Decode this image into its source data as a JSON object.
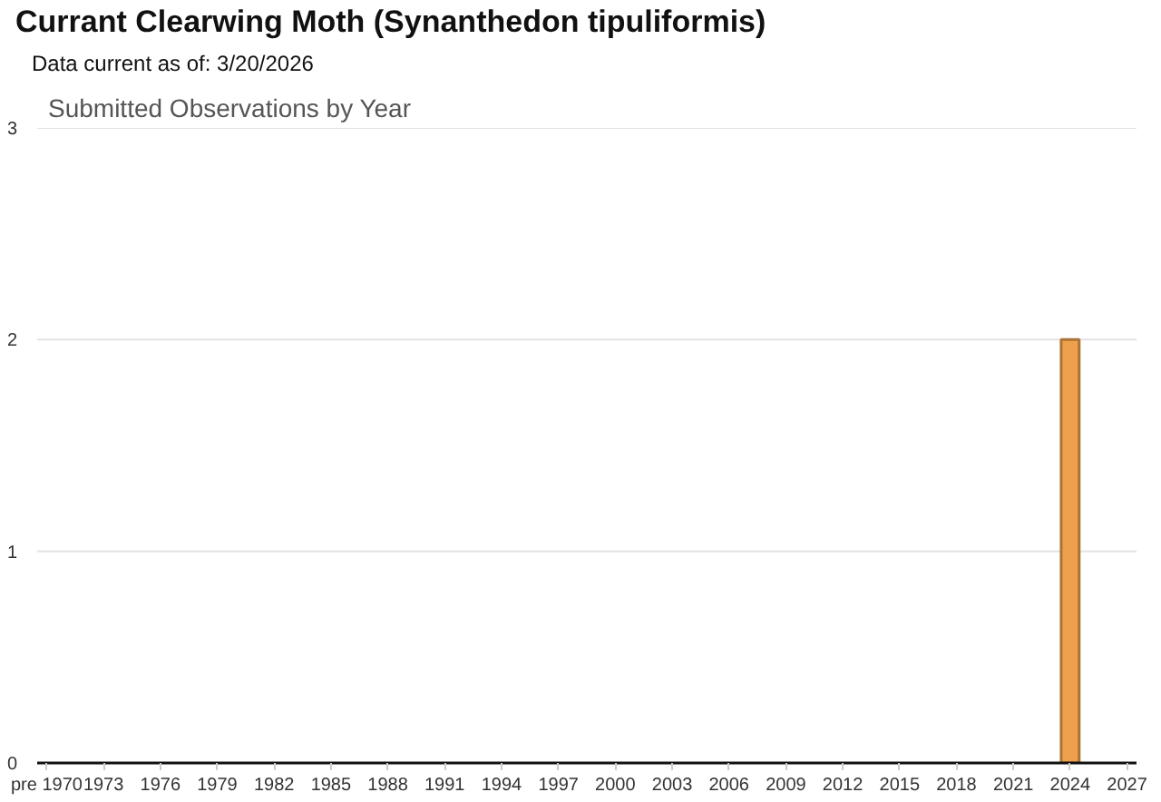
{
  "chart_data": {
    "type": "bar",
    "title": "Currant Clearwing Moth   (Synanthedon tipuliformis)",
    "subtitle": "Data current as of: 3/20/2026",
    "annotations": [
      "Submitted Observations by Year"
    ],
    "x": [
      2024
    ],
    "values": [
      2
    ],
    "color": "#eea04c",
    "xlim": [
      1969.5,
      2027.5
    ],
    "xticks": [
      {
        "value": 1970,
        "label": "pre 1970"
      },
      1973,
      1976,
      1979,
      1982,
      1985,
      1988,
      1991,
      1994,
      1997,
      2000,
      2003,
      2006,
      2009,
      2012,
      2015,
      2018,
      2021,
      2024,
      2027
    ],
    "ylim": [
      0,
      3
    ],
    "yticks": [
      0,
      1,
      2,
      3
    ],
    "grid": "y"
  }
}
